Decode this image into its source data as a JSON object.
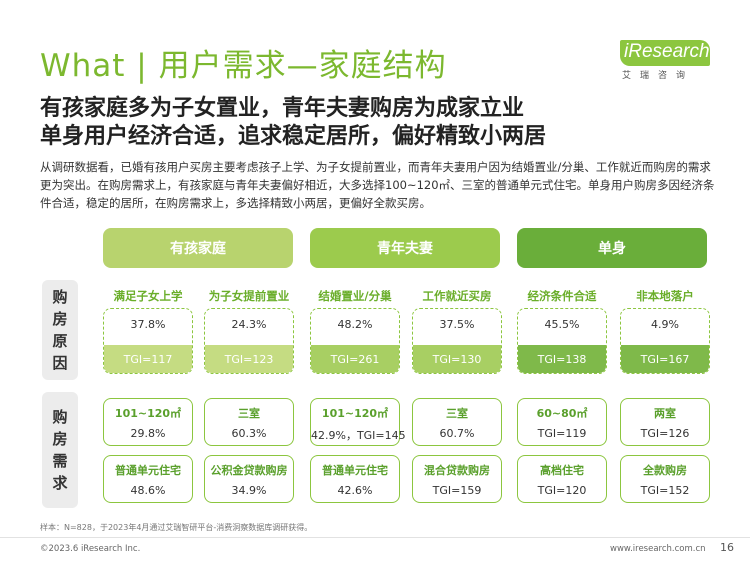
{
  "header": {
    "title": "What | 用户需求—家庭结构",
    "logo_text": "iResearch",
    "logo_sub": "艾瑞咨询",
    "brand_color": "#7cb82f"
  },
  "headlines": [
    "有孩家庭多为子女置业，青年夫妻购房为成家立业",
    "单身用户经济合适，追求稳定居所，偏好精致小两居"
  ],
  "intro": "从调研数据看，已婚有孩用户买房主要考虑孩子上学、为子女提前置业，而青年夫妻用户因为结婚置业/分巢、工作就近而购房的需求更为突出。在购房需求上，有孩家庭与青年夫妻偏好相近，大多选择100~120㎡、三室的普通单元式住宅。单身用户购房多因经济条件合适，稳定的居所，在购房需求上，多选择精致小两居，更偏好全款买房。",
  "groups": [
    "有孩家庭",
    "青年夫妻",
    "单身"
  ],
  "side_labels": {
    "reasons": [
      "购",
      "房",
      "原",
      "因"
    ],
    "needs": [
      "购",
      "房",
      "需",
      "求"
    ]
  },
  "reasons": [
    {
      "title": "满足子女上学",
      "pct": "37.8%",
      "tgi": "TGI=117"
    },
    {
      "title": "为子女提前置业",
      "pct": "24.3%",
      "tgi": "TGI=123"
    },
    {
      "title": "结婚置业/分巢",
      "pct": "48.2%",
      "tgi": "TGI=261"
    },
    {
      "title": "工作就近买房",
      "pct": "37.5%",
      "tgi": "TGI=130"
    },
    {
      "title": "经济条件合适",
      "pct": "45.5%",
      "tgi": "TGI=138"
    },
    {
      "title": "非本地落户",
      "pct": "4.9%",
      "tgi": "TGI=167"
    }
  ],
  "needs_row1": [
    {
      "title": "101~120㎡",
      "value": "29.8%"
    },
    {
      "title": "三室",
      "value": "60.3%"
    },
    {
      "title": "101~120㎡",
      "value": "42.9%，TGI=145"
    },
    {
      "title": "三室",
      "value": "60.7%"
    },
    {
      "title": "60~80㎡",
      "value": "TGI=119"
    },
    {
      "title": "两室",
      "value": "TGI=126"
    }
  ],
  "needs_row2": [
    {
      "title": "普通单元住宅",
      "value": "48.6%"
    },
    {
      "title": "公积金贷款购房",
      "value": "34.9%"
    },
    {
      "title": "普通单元住宅",
      "value": "42.6%"
    },
    {
      "title": "混合贷款购房",
      "value": "TGI=159"
    },
    {
      "title": "高档住宅",
      "value": "TGI=120"
    },
    {
      "title": "全款购房",
      "value": "TGI=152"
    }
  ],
  "note": "样本：N=828，于2023年4月通过艾瑞智研平台-消费洞察数据库调研获得。",
  "footer": {
    "copyright": "©2023.6 iResearch Inc.",
    "site": "www.iresearch.com.cn",
    "page": "16"
  }
}
